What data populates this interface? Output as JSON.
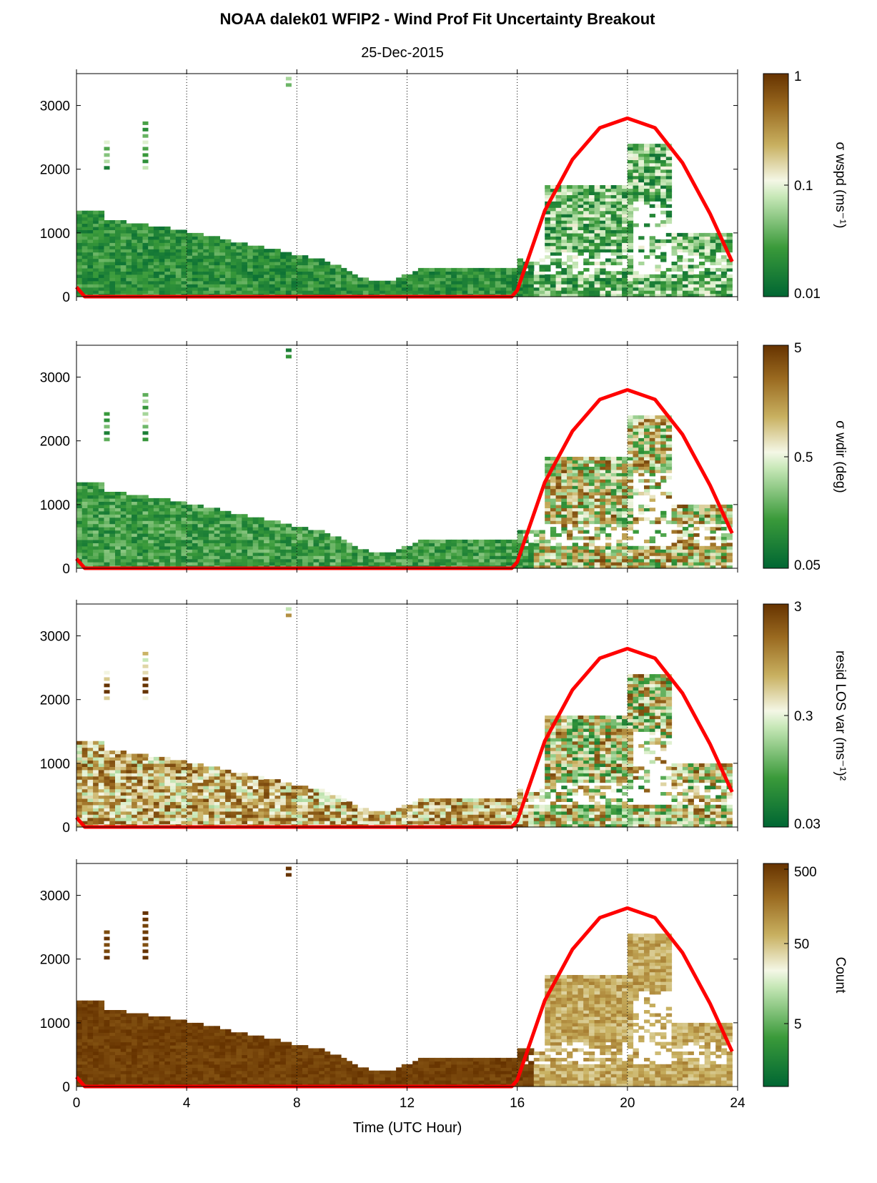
{
  "figure": {
    "title": "NOAA dalek01 WFIP2 - Wind Prof Fit Uncertainty Breakout",
    "subtitle": "25-Dec-2015",
    "xlabel": "Time (UTC Hour)",
    "x_ticks": [
      "0",
      "4",
      "8",
      "12",
      "16",
      "20",
      "24"
    ],
    "y_ticks": [
      "0",
      "1000",
      "2000",
      "3000"
    ],
    "sun_curve_color": "#ff0000",
    "cmap_low": "#006633",
    "cmap_mid": "#f4f7e6",
    "cmap_high": "#663300"
  },
  "chart_data": [
    {
      "type": "heatmap",
      "panel": "sigma-wspd",
      "colorbar_label": "σ wspd (ms⁻¹)",
      "colorbar_ticks": [
        "1",
        "0.1",
        "0.01"
      ],
      "colorbar_scale": "log",
      "clim": [
        0.01,
        1
      ],
      "x_range": [
        0,
        24
      ],
      "y_range": [
        0,
        3500
      ],
      "grid": "vertical dotted at 4,8,12,16,20",
      "overlay_sun_curve": {
        "x": [
          0,
          0.3,
          15.8,
          16,
          17,
          18,
          19,
          20,
          21,
          22,
          23,
          23.8
        ],
        "y": [
          150,
          0,
          0,
          100,
          1350,
          2150,
          2650,
          2800,
          2650,
          2100,
          1300,
          550
        ]
      }
    },
    {
      "type": "heatmap",
      "panel": "sigma-wdir",
      "colorbar_label": "σ wdir (deg)",
      "colorbar_ticks": [
        "5",
        "0.5",
        "0.05"
      ],
      "colorbar_scale": "log",
      "clim": [
        0.05,
        5
      ],
      "x_range": [
        0,
        24
      ],
      "y_range": [
        0,
        3500
      ],
      "grid": "vertical dotted at 4,8,12,16,20"
    },
    {
      "type": "heatmap",
      "panel": "resid-los-var",
      "colorbar_label": "resid LOS var (ms⁻¹)²",
      "colorbar_ticks": [
        "3",
        "0.3",
        "0.03"
      ],
      "colorbar_scale": "log",
      "clim": [
        0.03,
        3
      ],
      "x_range": [
        0,
        24
      ],
      "y_range": [
        0,
        3500
      ],
      "grid": "vertical dotted at 4,8,12,16,20"
    },
    {
      "type": "heatmap",
      "panel": "count",
      "colorbar_label": "Count",
      "colorbar_ticks": [
        "500",
        "50",
        "5"
      ],
      "colorbar_scale": "log",
      "clim": [
        0.5,
        500
      ],
      "x_range": [
        0,
        24
      ],
      "y_range": [
        0,
        3500
      ],
      "grid": "vertical dotted at 4,8,12,16,20"
    }
  ]
}
